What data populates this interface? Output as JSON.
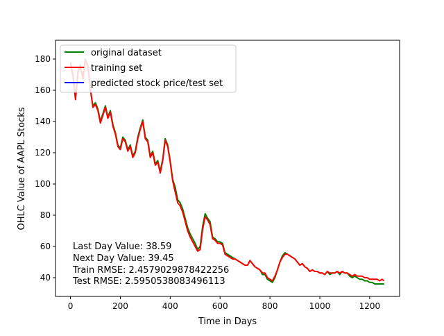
{
  "chart_data": {
    "type": "line",
    "xlabel": "Time in Days",
    "ylabel": "OHLC Value of AAPL Stocks",
    "xlim": [
      -60,
      1320
    ],
    "ylim": [
      28,
      192
    ],
    "xticks": [
      0,
      200,
      400,
      600,
      800,
      1000,
      1200
    ],
    "yticks": [
      40,
      60,
      80,
      100,
      120,
      140,
      160,
      180
    ],
    "legend": {
      "placement": "top-left"
    },
    "series": [
      {
        "name": "original dataset",
        "color": "#008000",
        "x": [
          0,
          10,
          20,
          30,
          40,
          50,
          60,
          70,
          80,
          90,
          100,
          110,
          120,
          130,
          140,
          150,
          160,
          170,
          180,
          190,
          200,
          210,
          220,
          230,
          240,
          250,
          260,
          270,
          280,
          290,
          300,
          310,
          320,
          330,
          340,
          350,
          360,
          370,
          380,
          390,
          400,
          410,
          420,
          430,
          440,
          450,
          460,
          470,
          480,
          490,
          500,
          510,
          520,
          530,
          540,
          550,
          560,
          570,
          580,
          590,
          600,
          610,
          620,
          630,
          640,
          650,
          660,
          670,
          680,
          690,
          700,
          710,
          720,
          730,
          740,
          750,
          760,
          770,
          780,
          790,
          800,
          810,
          820,
          830,
          840,
          850,
          860,
          870,
          880,
          890,
          900,
          910,
          920,
          930,
          940,
          950,
          960,
          970,
          980,
          990,
          1000,
          1010,
          1020,
          1030,
          1040,
          1050,
          1060,
          1070,
          1080,
          1090,
          1100,
          1110,
          1120,
          1130,
          1140,
          1150,
          1160,
          1170,
          1180,
          1190,
          1200,
          1210,
          1220,
          1230,
          1240,
          1250,
          1258
        ],
        "y": [
          178,
          170,
          155,
          172,
          176,
          168,
          180,
          175,
          160,
          150,
          152,
          148,
          140,
          145,
          150,
          143,
          147,
          138,
          133,
          125,
          123,
          130,
          128,
          122,
          125,
          118,
          121,
          130,
          136,
          141,
          130,
          128,
          118,
          121,
          113,
          115,
          108,
          116,
          129,
          125,
          115,
          103,
          98,
          90,
          88,
          84,
          78,
          72,
          68,
          65,
          62,
          58,
          60,
          73,
          81,
          78,
          76,
          66,
          65,
          63,
          63,
          62,
          56,
          55,
          54,
          53,
          52,
          51,
          50,
          49,
          48,
          48,
          51,
          49,
          47,
          46,
          45,
          42,
          42,
          39,
          38,
          37,
          40,
          45,
          50,
          54,
          56,
          55,
          54,
          53,
          52,
          50,
          48,
          49,
          47,
          46,
          44,
          45,
          44,
          44,
          43,
          43,
          42,
          44,
          42,
          43,
          43,
          44,
          42,
          44,
          43,
          43,
          41,
          40,
          41,
          40,
          39,
          39,
          38,
          38,
          37,
          37,
          36,
          36,
          36,
          36,
          36
        ]
      },
      {
        "name": "training set",
        "color": "#ff0000",
        "x": [
          0,
          10,
          20,
          30,
          40,
          50,
          60,
          70,
          80,
          90,
          100,
          110,
          120,
          130,
          140,
          150,
          160,
          170,
          180,
          190,
          200,
          210,
          220,
          230,
          240,
          250,
          260,
          270,
          280,
          290,
          300,
          310,
          320,
          330,
          340,
          350,
          360,
          370,
          380,
          390,
          400,
          410,
          420,
          430,
          440,
          450,
          460,
          470,
          480,
          490,
          500,
          510,
          520,
          530,
          540,
          550,
          560,
          570,
          580,
          590,
          600,
          610,
          620,
          630,
          640,
          650,
          660,
          670,
          680,
          690,
          700,
          710,
          720,
          730,
          740,
          750,
          760,
          770,
          780,
          790,
          800,
          810,
          820,
          830,
          840,
          850,
          860,
          870,
          880,
          890,
          900,
          910,
          920,
          930,
          940,
          950,
          960,
          970,
          980,
          990,
          1000,
          1010,
          1020,
          1030,
          1040,
          1050,
          1060,
          1070,
          1080,
          1090,
          1100,
          1110,
          1120,
          1130,
          1140,
          1150,
          1160,
          1170,
          1180,
          1190,
          1200,
          1210,
          1220,
          1230,
          1240,
          1250,
          1258
        ],
        "y": [
          177,
          169,
          154,
          171,
          175,
          167,
          179,
          176,
          161,
          149,
          151,
          147,
          139,
          144,
          149,
          142,
          146,
          137,
          132,
          124,
          122,
          129,
          127,
          121,
          124,
          117,
          120,
          129,
          135,
          140,
          129,
          127,
          117,
          120,
          112,
          114,
          107,
          115,
          128,
          124,
          114,
          102,
          95,
          88,
          86,
          82,
          76,
          70,
          66,
          63,
          60,
          57,
          58,
          71,
          79,
          77,
          74,
          65,
          64,
          62,
          62,
          61,
          55,
          54,
          53,
          52,
          52,
          51,
          50,
          49,
          48,
          48,
          51,
          49,
          47,
          46,
          45,
          43,
          43,
          40,
          39,
          38,
          41,
          45,
          50,
          53,
          55,
          55,
          54,
          53,
          52,
          50,
          48,
          49,
          47,
          46,
          44,
          45,
          44,
          44,
          43,
          43,
          42,
          44,
          43,
          43,
          43,
          44,
          43,
          44,
          43,
          43,
          42,
          41,
          42,
          41,
          41,
          41,
          40,
          40,
          39,
          39,
          39,
          39,
          38,
          39,
          38
        ]
      },
      {
        "name": "predicted stock price/test set",
        "color": "#0000ff",
        "x": [],
        "y": []
      }
    ],
    "annotations": [
      "Last Day Value: 38.59",
      "Next Day Value: 39.45",
      "Train RMSE: 2.4579029878422256",
      "Test RMSE: 2.5950538083496113"
    ]
  }
}
